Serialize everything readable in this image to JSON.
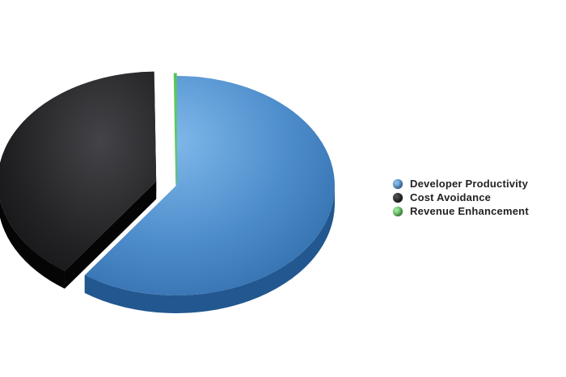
{
  "chart_data": {
    "type": "pie",
    "title": "",
    "categories": [
      "Developer Productivity",
      "Cost Avoidance",
      "Revenue Enhancement"
    ],
    "values": [
      59.8,
      40.0,
      0.2
    ],
    "colors": [
      "#4a86c5",
      "#1e1e20",
      "#5cc85c"
    ],
    "exploded": true,
    "three_d": true,
    "legend_position": "right"
  }
}
